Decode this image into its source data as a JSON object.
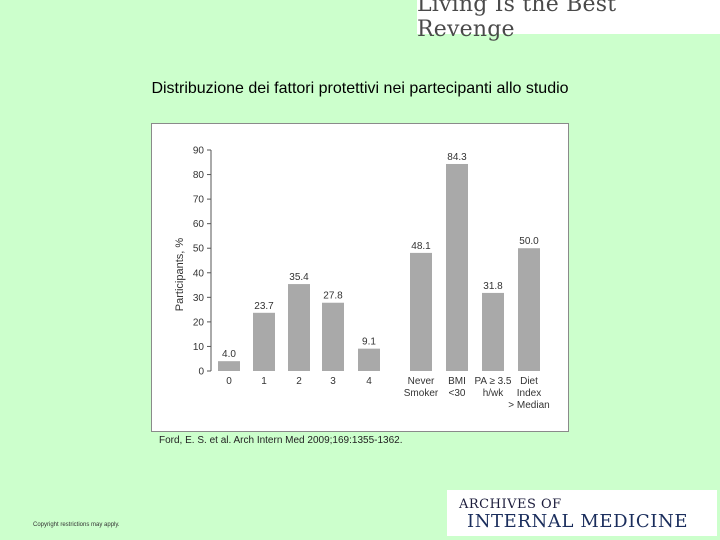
{
  "banner": {
    "text": "Living Is the Best Revenge"
  },
  "slide": {
    "title": "Distribuzione dei fattori protettivi nei partecipanti allo studio"
  },
  "citation": "Ford, E. S. et al. Arch Intern Med 2009;169:1355-1362.",
  "copyright": "Copyright restrictions may apply.",
  "journal": {
    "line1": "ARCHIVES OF",
    "line2": "INTERNAL MEDICINE"
  },
  "colors": {
    "bar": "#a9a9a9",
    "background": "#ccffcc"
  },
  "chart_data": {
    "type": "bar",
    "title": "",
    "xlabel": "",
    "ylabel": "Participants, %",
    "ylim": [
      0,
      90
    ],
    "yticks": [
      0,
      10,
      20,
      30,
      40,
      50,
      60,
      70,
      80,
      90
    ],
    "grid": false,
    "categories": [
      [
        "0"
      ],
      [
        "1"
      ],
      [
        "2"
      ],
      [
        "3"
      ],
      [
        "4"
      ],
      [
        "Never",
        "Smoker"
      ],
      [
        "BMI",
        "<30"
      ],
      [
        "PA ≥ 3.5",
        "h/wk"
      ],
      [
        "Diet",
        "Index",
        "> Median"
      ]
    ],
    "values": [
      4.0,
      23.7,
      35.4,
      27.8,
      9.1,
      48.1,
      84.3,
      31.8,
      50.0
    ],
    "labels": [
      "4.0",
      "23.7",
      "35.4",
      "27.8",
      "9.1",
      "48.1",
      "84.3",
      "31.8",
      "50.0"
    ]
  }
}
